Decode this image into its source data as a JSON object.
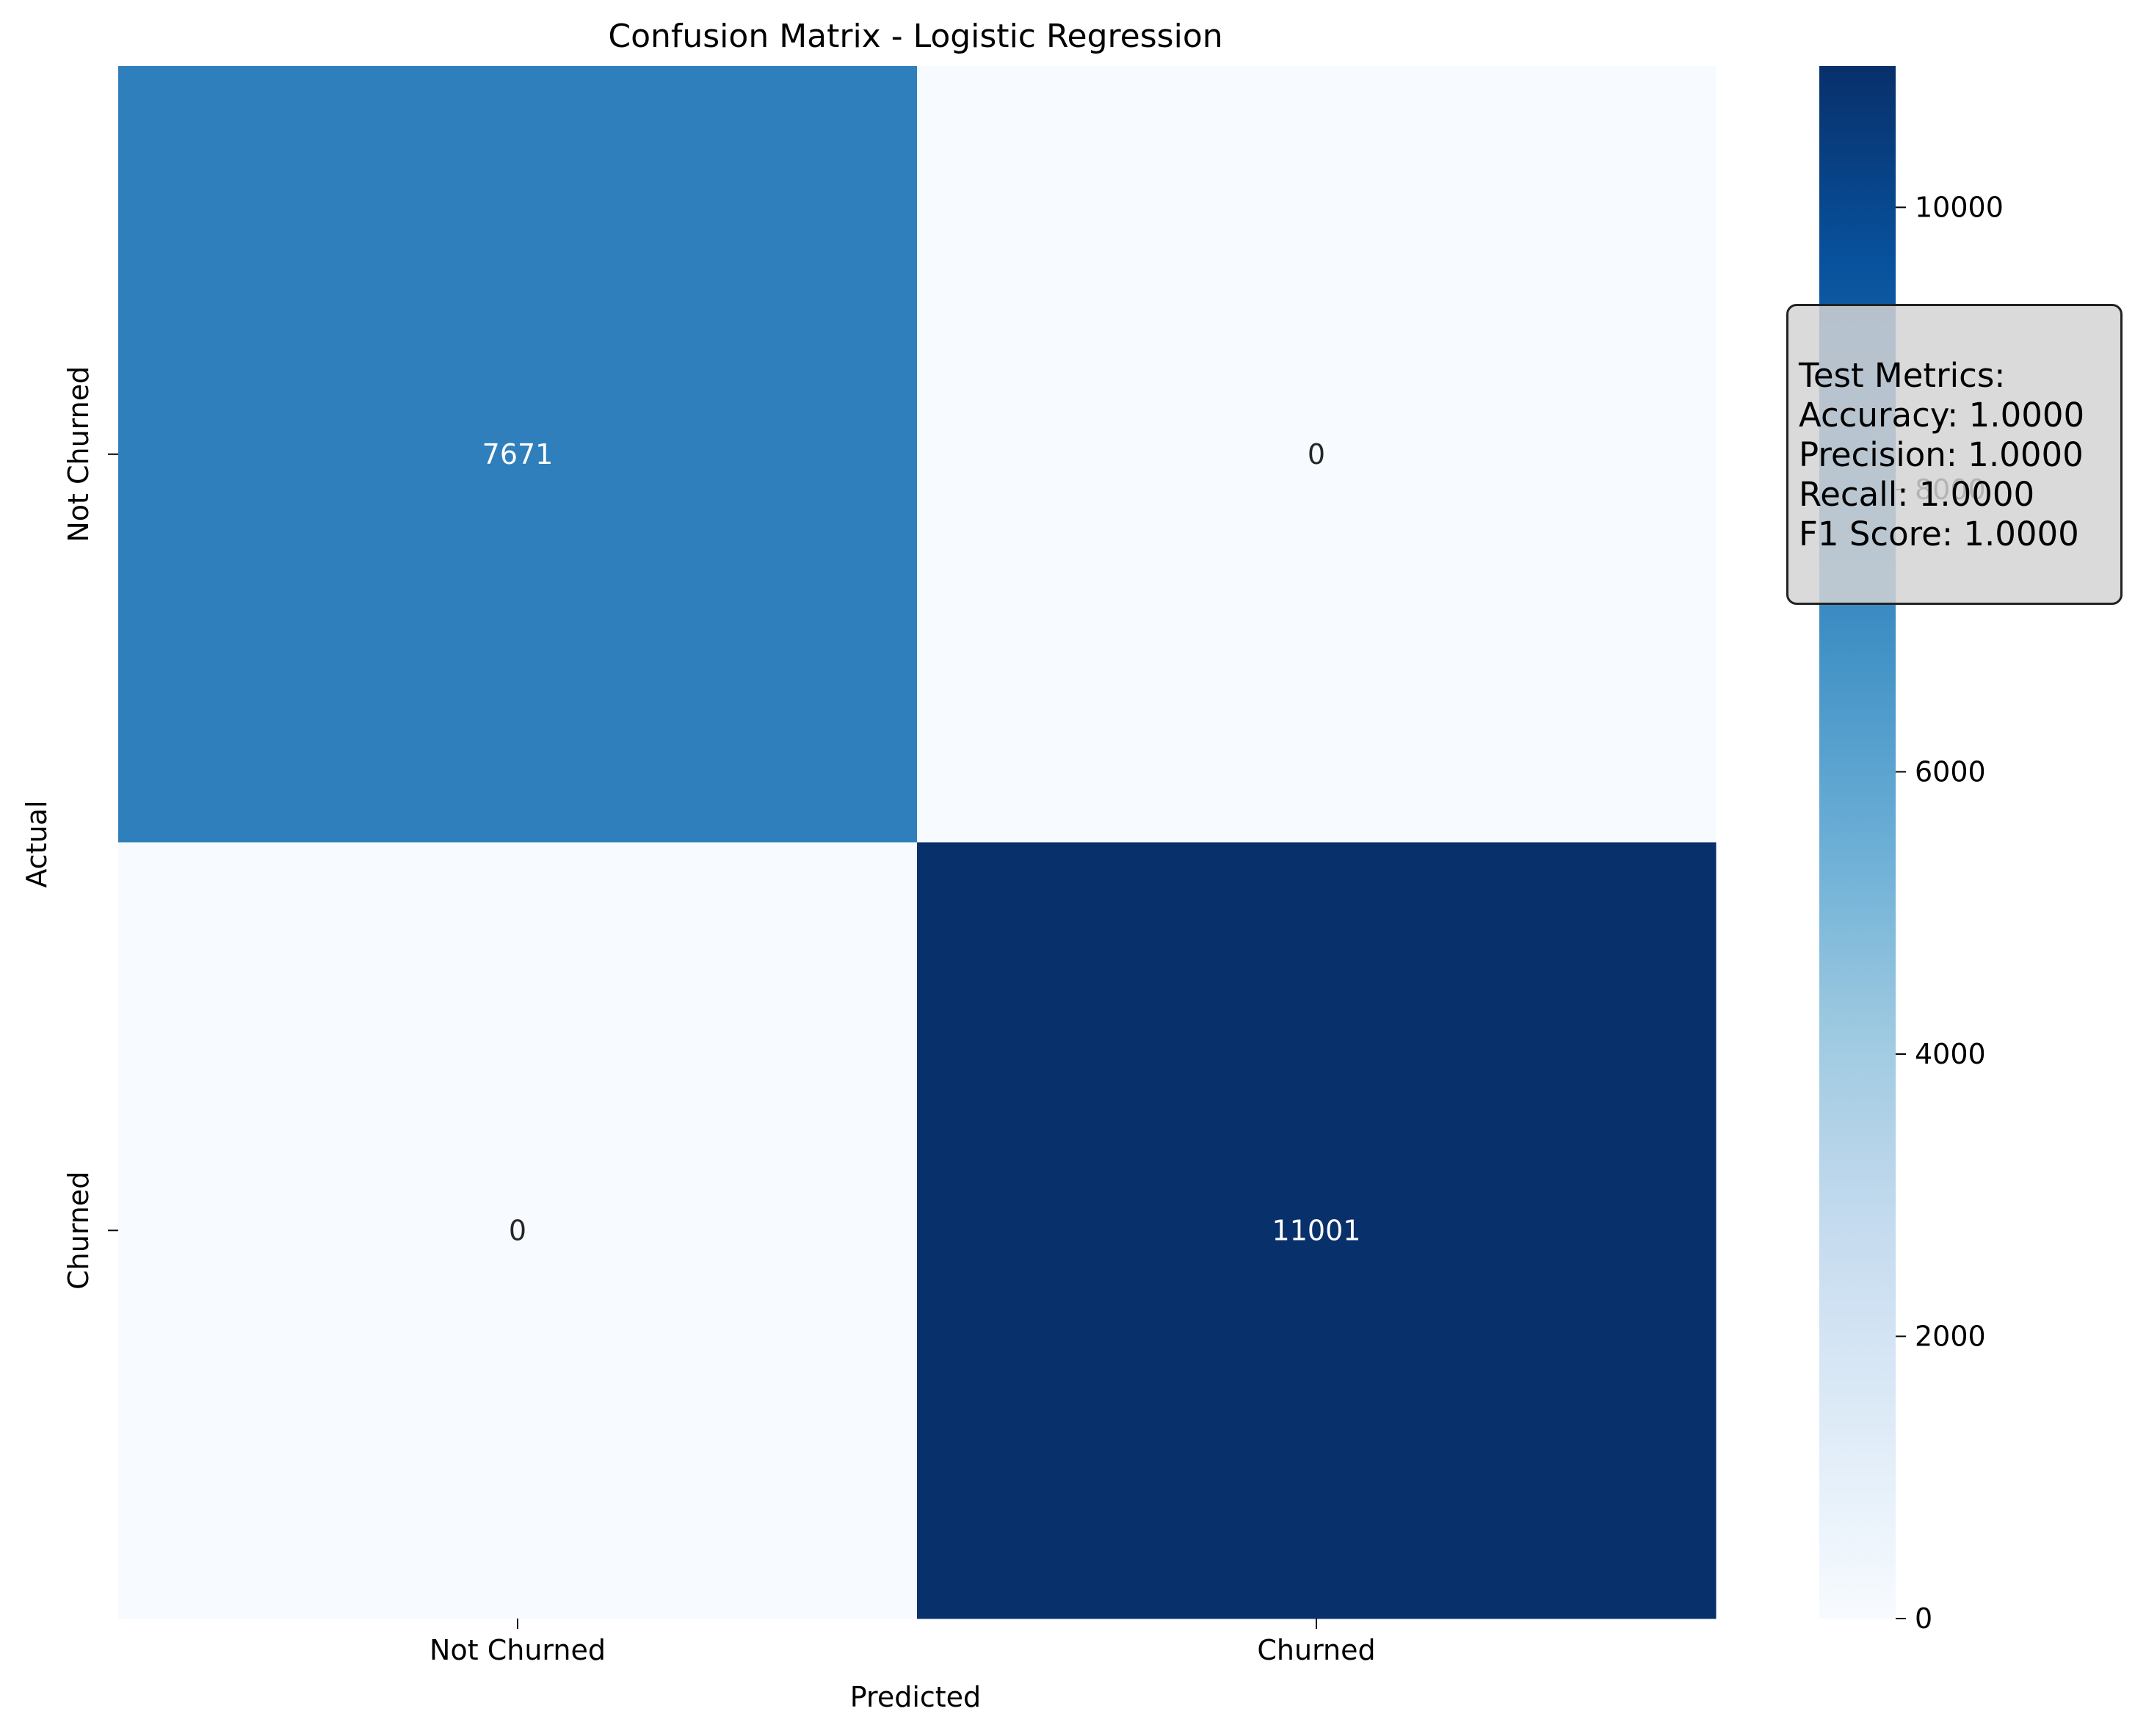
{
  "chart_data": {
    "type": "heatmap",
    "title": "Confusion Matrix - Logistic Regression",
    "xlabel": "Predicted",
    "ylabel": "Actual",
    "x_categories": [
      "Not Churned",
      "Churned"
    ],
    "y_categories": [
      "Not Churned",
      "Churned"
    ],
    "values": [
      [
        7671,
        0
      ],
      [
        0,
        11001
      ]
    ],
    "colormap": "Blues",
    "colorbar": {
      "range": [
        0,
        11001
      ],
      "ticks": [
        0,
        2000,
        4000,
        6000,
        8000,
        10000
      ]
    }
  },
  "metrics": {
    "title": "Test Metrics:",
    "lines": [
      "Accuracy: 1.0000",
      "Precision: 1.0000",
      "Recall: 1.0000",
      "F1 Score: 1.0000"
    ]
  }
}
